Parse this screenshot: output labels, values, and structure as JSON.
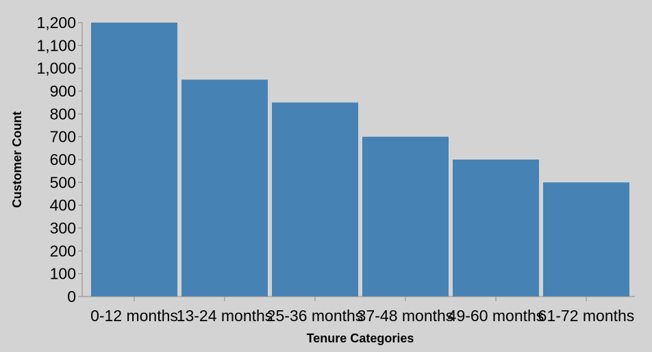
{
  "chart_data": {
    "type": "bar",
    "title": "",
    "xlabel": "Tenure Categories",
    "ylabel": "Customer Count",
    "categories": [
      "0-12 months",
      "13-24 months",
      "25-36 months",
      "37-48 months",
      "49-60 months",
      "61-72 months"
    ],
    "values": [
      1200,
      950,
      850,
      700,
      600,
      500
    ],
    "ylim": [
      0,
      1200
    ],
    "yticks": [
      0,
      100,
      200,
      300,
      400,
      500,
      600,
      700,
      800,
      900,
      1000,
      1100,
      1200
    ],
    "ytick_labels": [
      "0",
      "100",
      "200",
      "300",
      "400",
      "500",
      "600",
      "700",
      "800",
      "900",
      "1,000",
      "1,100",
      "1,200"
    ],
    "grid": false,
    "legend": "none"
  },
  "colors": {
    "background": "#d3d3d3",
    "bar": "#4682b4",
    "axis": "#888888",
    "text": "#000000"
  }
}
